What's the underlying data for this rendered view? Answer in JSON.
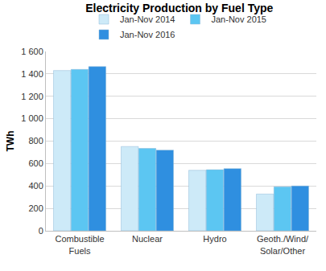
{
  "chart_data": {
    "type": "bar",
    "title": "Electricity Production by Fuel Type",
    "y_label": "TWh",
    "categories": [
      "Combustible Fuels",
      "Nuclear",
      "Hydro",
      "Geoth./Wind/ Solar/Other"
    ],
    "series": [
      {
        "name": "Jan-Nov 2014",
        "color": "#cdeaf8",
        "values": [
          1430,
          752,
          540,
          328
        ]
      },
      {
        "name": "Jan-Nov 2015",
        "color": "#5cc6f2",
        "values": [
          1440,
          735,
          545,
          393
        ]
      },
      {
        "name": "Jan-Nov 2016",
        "color": "#2f8fe0",
        "values": [
          1465,
          720,
          555,
          400
        ]
      }
    ],
    "ylim": [
      0,
      1600
    ],
    "yticks": [
      0,
      200,
      400,
      600,
      800,
      {
        "value": 1000,
        "label": "1 000"
      },
      {
        "value": 1200,
        "label": "1 200"
      },
      {
        "value": 1400,
        "label": "1 400"
      },
      {
        "value": 1600,
        "label": "1 600"
      }
    ],
    "grid": true,
    "legend": "top"
  }
}
